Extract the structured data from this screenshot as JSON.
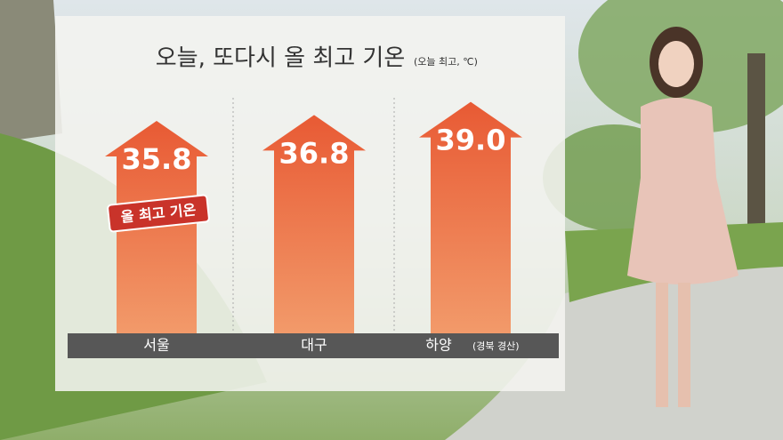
{
  "chart_data": {
    "type": "arrow-bar",
    "title": "오늘, 또다시 올 최고 기온",
    "subtitle": "(오늘 최고, ℃)",
    "categories": [
      "서울",
      "대구",
      "하양"
    ],
    "category_notes": [
      null,
      null,
      "(경북 경산)"
    ],
    "values": [
      35.8,
      36.8,
      39.0
    ],
    "value_labels": [
      "35.8",
      "36.8",
      "39.0"
    ],
    "annotation": "올 최고 기온",
    "color": "#ea6a3e",
    "ylim": [
      0,
      40
    ]
  }
}
